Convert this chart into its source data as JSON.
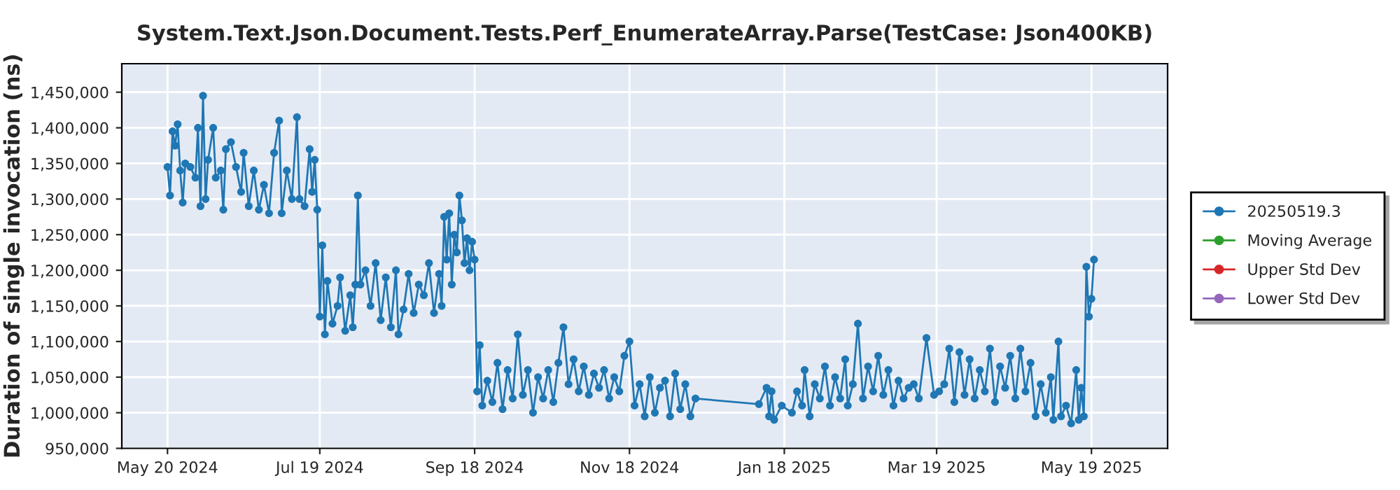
{
  "chart_data": {
    "type": "line",
    "title": "System.Text.Json.Document.Tests.Perf_EnumerateArray.Parse(TestCase: Json400KB)",
    "ylabel": "Duration of single invocation (ns)",
    "xlim": [
      "2024-05-02",
      "2025-06-18"
    ],
    "xticks": [
      {
        "value": "2024-05-20",
        "label": "May 20 2024"
      },
      {
        "value": "2024-07-19",
        "label": "Jul 19 2024"
      },
      {
        "value": "2024-09-18",
        "label": "Sep 18 2024"
      },
      {
        "value": "2024-11-18",
        "label": "Nov 18 2024"
      },
      {
        "value": "2025-01-18",
        "label": "Jan 18 2025"
      },
      {
        "value": "2025-03-19",
        "label": "Mar 19 2025"
      },
      {
        "value": "2025-05-19",
        "label": "May 19 2025"
      }
    ],
    "ylim": [
      950000,
      1490000
    ],
    "yticks": [
      {
        "value": 950000,
        "label": "950,000"
      },
      {
        "value": 1000000,
        "label": "1,000,000"
      },
      {
        "value": 1050000,
        "label": "1,050,000"
      },
      {
        "value": 1100000,
        "label": "1,100,000"
      },
      {
        "value": 1150000,
        "label": "1,150,000"
      },
      {
        "value": 1200000,
        "label": "1,200,000"
      },
      {
        "value": 1250000,
        "label": "1,250,000"
      },
      {
        "value": 1300000,
        "label": "1,300,000"
      },
      {
        "value": 1350000,
        "label": "1,350,000"
      },
      {
        "value": 1400000,
        "label": "1,400,000"
      },
      {
        "value": 1450000,
        "label": "1,450,000"
      }
    ],
    "grid": true,
    "legend": "right",
    "marker": "circle",
    "line_style": "solid",
    "series": [
      {
        "name": "20250519.3",
        "color": "#1f77b4",
        "x": [
          "2024-05-20",
          "2024-05-21",
          "2024-05-22",
          "2024-05-23",
          "2024-05-24",
          "2024-05-25",
          "2024-05-26",
          "2024-05-27",
          "2024-05-29",
          "2024-05-31",
          "2024-06-01",
          "2024-06-02",
          "2024-06-03",
          "2024-06-04",
          "2024-06-05",
          "2024-06-07",
          "2024-06-08",
          "2024-06-10",
          "2024-06-11",
          "2024-06-12",
          "2024-06-14",
          "2024-06-16",
          "2024-06-18",
          "2024-06-19",
          "2024-06-21",
          "2024-06-23",
          "2024-06-25",
          "2024-06-27",
          "2024-06-29",
          "2024-07-01",
          "2024-07-03",
          "2024-07-04",
          "2024-07-06",
          "2024-07-08",
          "2024-07-10",
          "2024-07-11",
          "2024-07-13",
          "2024-07-15",
          "2024-07-16",
          "2024-07-17",
          "2024-07-18",
          "2024-07-19",
          "2024-07-20",
          "2024-07-21",
          "2024-07-22",
          "2024-07-24",
          "2024-07-26",
          "2024-07-27",
          "2024-07-29",
          "2024-07-31",
          "2024-08-01",
          "2024-08-02",
          "2024-08-03",
          "2024-08-04",
          "2024-08-06",
          "2024-08-08",
          "2024-08-10",
          "2024-08-12",
          "2024-08-14",
          "2024-08-16",
          "2024-08-18",
          "2024-08-19",
          "2024-08-21",
          "2024-08-23",
          "2024-08-25",
          "2024-08-27",
          "2024-08-29",
          "2024-08-31",
          "2024-09-02",
          "2024-09-04",
          "2024-09-05",
          "2024-09-06",
          "2024-09-07",
          "2024-09-08",
          "2024-09-09",
          "2024-09-10",
          "2024-09-11",
          "2024-09-12",
          "2024-09-13",
          "2024-09-14",
          "2024-09-15",
          "2024-09-16",
          "2024-09-17",
          "2024-09-18",
          "2024-09-19",
          "2024-09-20",
          "2024-09-21",
          "2024-09-23",
          "2024-09-25",
          "2024-09-27",
          "2024-09-29",
          "2024-10-01",
          "2024-10-03",
          "2024-10-05",
          "2024-10-07",
          "2024-10-09",
          "2024-10-11",
          "2024-10-13",
          "2024-10-15",
          "2024-10-17",
          "2024-10-19",
          "2024-10-21",
          "2024-10-23",
          "2024-10-25",
          "2024-10-27",
          "2024-10-29",
          "2024-10-31",
          "2024-11-02",
          "2024-11-04",
          "2024-11-06",
          "2024-11-08",
          "2024-11-10",
          "2024-11-12",
          "2024-11-14",
          "2024-11-16",
          "2024-11-18",
          "2024-11-20",
          "2024-11-22",
          "2024-11-24",
          "2024-11-26",
          "2024-11-28",
          "2024-11-30",
          "2024-12-02",
          "2024-12-04",
          "2024-12-06",
          "2024-12-08",
          "2024-12-10",
          "2024-12-12",
          "2024-12-14",
          "2025-01-08",
          "2025-01-11",
          "2025-01-12",
          "2025-01-13",
          "2025-01-14",
          "2025-01-17",
          "2025-01-21",
          "2025-01-23",
          "2025-01-25",
          "2025-01-26",
          "2025-01-28",
          "2025-01-30",
          "2025-02-01",
          "2025-02-03",
          "2025-02-05",
          "2025-02-07",
          "2025-02-09",
          "2025-02-11",
          "2025-02-12",
          "2025-02-14",
          "2025-02-16",
          "2025-02-18",
          "2025-02-20",
          "2025-02-22",
          "2025-02-24",
          "2025-02-26",
          "2025-02-28",
          "2025-03-02",
          "2025-03-04",
          "2025-03-06",
          "2025-03-08",
          "2025-03-10",
          "2025-03-12",
          "2025-03-15",
          "2025-03-18",
          "2025-03-20",
          "2025-03-22",
          "2025-03-24",
          "2025-03-26",
          "2025-03-28",
          "2025-03-30",
          "2025-04-01",
          "2025-04-03",
          "2025-04-05",
          "2025-04-07",
          "2025-04-09",
          "2025-04-11",
          "2025-04-13",
          "2025-04-15",
          "2025-04-17",
          "2025-04-19",
          "2025-04-21",
          "2025-04-23",
          "2025-04-25",
          "2025-04-27",
          "2025-04-29",
          "2025-05-01",
          "2025-05-03",
          "2025-05-04",
          "2025-05-06",
          "2025-05-07",
          "2025-05-09",
          "2025-05-11",
          "2025-05-13",
          "2025-05-14",
          "2025-05-15",
          "2025-05-16",
          "2025-05-17",
          "2025-05-18",
          "2025-05-19",
          "2025-05-20"
        ],
        "values": [
          1345000,
          1305000,
          1395000,
          1375000,
          1405000,
          1340000,
          1295000,
          1350000,
          1345000,
          1330000,
          1400000,
          1290000,
          1445000,
          1300000,
          1355000,
          1400000,
          1330000,
          1340000,
          1285000,
          1370000,
          1380000,
          1345000,
          1310000,
          1365000,
          1290000,
          1340000,
          1285000,
          1320000,
          1280000,
          1365000,
          1410000,
          1280000,
          1340000,
          1300000,
          1415000,
          1300000,
          1290000,
          1370000,
          1310000,
          1355000,
          1285000,
          1135000,
          1235000,
          1110000,
          1185000,
          1125000,
          1150000,
          1190000,
          1115000,
          1165000,
          1120000,
          1180000,
          1305000,
          1180000,
          1200000,
          1150000,
          1210000,
          1130000,
          1190000,
          1120000,
          1200000,
          1110000,
          1145000,
          1195000,
          1140000,
          1180000,
          1165000,
          1210000,
          1140000,
          1195000,
          1150000,
          1275000,
          1215000,
          1280000,
          1180000,
          1250000,
          1225000,
          1305000,
          1270000,
          1210000,
          1245000,
          1200000,
          1240000,
          1215000,
          1030000,
          1095000,
          1010000,
          1045000,
          1015000,
          1070000,
          1005000,
          1060000,
          1020000,
          1110000,
          1025000,
          1060000,
          1000000,
          1050000,
          1020000,
          1060000,
          1015000,
          1070000,
          1120000,
          1040000,
          1075000,
          1030000,
          1065000,
          1025000,
          1055000,
          1035000,
          1060000,
          1020000,
          1050000,
          1030000,
          1080000,
          1100000,
          1010000,
          1040000,
          995000,
          1050000,
          1000000,
          1035000,
          1045000,
          995000,
          1055000,
          1005000,
          1040000,
          995000,
          1020000,
          1012000,
          1035000,
          995000,
          1030000,
          990000,
          1010000,
          1000000,
          1030000,
          1010000,
          1060000,
          995000,
          1040000,
          1020000,
          1065000,
          1010000,
          1050000,
          1020000,
          1075000,
          1010000,
          1040000,
          1125000,
          1020000,
          1065000,
          1030000,
          1080000,
          1025000,
          1060000,
          1010000,
          1045000,
          1020000,
          1035000,
          1040000,
          1020000,
          1105000,
          1025000,
          1030000,
          1040000,
          1090000,
          1015000,
          1085000,
          1025000,
          1075000,
          1020000,
          1060000,
          1030000,
          1090000,
          1015000,
          1065000,
          1035000,
          1080000,
          1020000,
          1090000,
          1030000,
          1070000,
          995000,
          1040000,
          1000000,
          1050000,
          990000,
          1100000,
          995000,
          1010000,
          985000,
          1060000,
          990000,
          1035000,
          995000,
          1205000,
          1135000,
          1160000,
          1215000
        ]
      },
      {
        "name": "Moving Average",
        "color": "#2ca02c"
      },
      {
        "name": "Upper Std Dev",
        "color": "#d62728"
      },
      {
        "name": "Lower Std Dev",
        "color": "#9467bd"
      }
    ]
  }
}
